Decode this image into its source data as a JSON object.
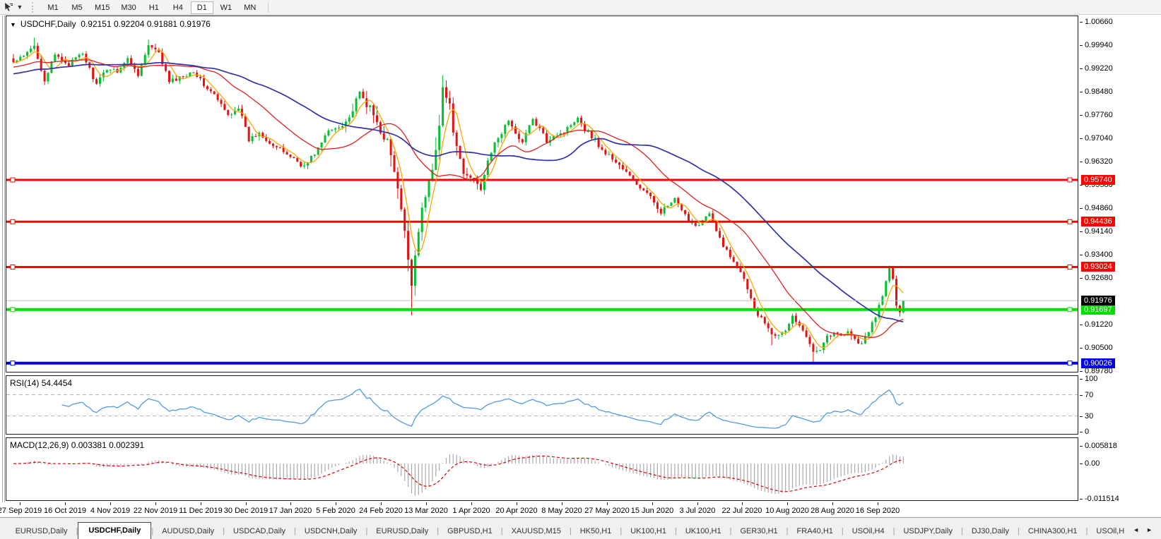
{
  "toolbar": {
    "dropdown_caret": "▼",
    "timeframes": [
      "M1",
      "M5",
      "M15",
      "M30",
      "H1",
      "H4",
      "D1",
      "W1",
      "MN"
    ],
    "active_timeframe": "D1"
  },
  "main_chart": {
    "label": {
      "collapse_icon": "▼",
      "symbol": "USDCHF,Daily",
      "values": "0.92151 0.92204 0.91881 0.91976"
    },
    "y_axis_ticks": [
      "1.00660",
      "0.99940",
      "0.99220",
      "0.98480",
      "0.97760",
      "0.97040",
      "0.96320",
      "0.95580",
      "0.94860",
      "0.94140",
      "0.93400",
      "0.92680",
      "0.91220",
      "0.90500",
      "0.89780"
    ],
    "hlines": [
      {
        "price": 0.9574,
        "label": "0.95740",
        "color": "#FF0000",
        "thickness": 3
      },
      {
        "price": 0.94436,
        "label": "0.94436",
        "color": "#FF0000",
        "thickness": 3
      },
      {
        "price": 0.93024,
        "label": "0.93024",
        "color": "#FF0000",
        "thickness": 3
      },
      {
        "price": 0.91697,
        "label": "0.91697",
        "color": "#00DD00",
        "thickness": 4
      },
      {
        "price": 0.90026,
        "label": "0.90026",
        "color": "#0000E8",
        "thickness": 4
      }
    ],
    "current_price": {
      "value": 0.91976,
      "label": "0.91976",
      "line_color": "#bdbdbd",
      "label_bg": "#000000"
    }
  },
  "rsi": {
    "name": "RSI(14)",
    "value": "54.4454",
    "line_color": "#4F9BE8",
    "level_dash_color": "#b5b5b5",
    "levels": [
      70,
      30
    ],
    "ticks": [
      {
        "v": 100,
        "label": "100"
      },
      {
        "v": 70,
        "label": "70"
      },
      {
        "v": 30,
        "label": "30"
      },
      {
        "v": 0,
        "label": "0"
      }
    ]
  },
  "macd": {
    "name": "MACD(12,26,9)",
    "values": "0.003381 0.002391",
    "hist_color": "#A9A9A9",
    "signal_color": "#E00000",
    "ticks": [
      {
        "v": 0.005818,
        "label": "0.005818"
      },
      {
        "v": 0,
        "label": "0.00"
      },
      {
        "v": -0.011514,
        "label": "-0.011514"
      }
    ]
  },
  "time_axis": {
    "dates": [
      "27 Sep 2019",
      "16 Oct 2019",
      "4 Nov 2019",
      "22 Nov 2019",
      "11 Dec 2019",
      "30 Dec 2019",
      "17 Jan 2020",
      "5 Feb 2020",
      "24 Feb 2020",
      "13 Mar 2020",
      "1 Apr 2020",
      "20 Apr 2020",
      "8 May 2020",
      "27 May 2020",
      "15 Jun 2020",
      "3 Jul 2020",
      "22 Jul 2020",
      "10 Aug 2020",
      "28 Aug 2020",
      "16 Sep 2020"
    ]
  },
  "tabs": {
    "items": [
      "EURUSD,Daily",
      "USDCHF,Daily",
      "AUDUSD,Daily",
      "USDCAD,Daily",
      "USDCNH,Daily",
      "EURUSD,Daily",
      "GBPUSD,H1",
      "XAUUSD,M15",
      "HK50,H1",
      "UK100,H1",
      "UK100,H1",
      "GER30,H1",
      "FRA40,H1",
      "USOil,H4",
      "USDJPY,Daily",
      "DJ30,Daily",
      "CHINA300,H1",
      "USOil,H"
    ],
    "active_index": 1,
    "scroll_left": "◄",
    "scroll_right": "►"
  },
  "colors": {
    "up": "#00C12E",
    "down": "#E81010",
    "ma_fast": "#FFA500",
    "ma_mid": "#E02020",
    "ma_slow": "#3232A8"
  },
  "chart_data": {
    "type": "candlestick",
    "symbol": "USDCHF",
    "timeframe": "Daily",
    "displayed_ohlc": {
      "open": "0.92151",
      "high": "0.92204",
      "low": "0.91881",
      "close": "0.91976"
    },
    "last_close": 0.91976,
    "price_axis_top": 1.0082,
    "price_axis_bottom": 0.8973,
    "levels": [
      0.9574,
      0.94436,
      0.93024,
      0.91697,
      0.90026
    ],
    "moving_averages": [
      {
        "period": 5,
        "color_key": "ma_fast"
      },
      {
        "period": 22,
        "color_key": "ma_mid"
      },
      {
        "period": 48,
        "color_key": "ma_slow"
      }
    ],
    "indicators": [
      {
        "name": "RSI",
        "params": [
          14
        ],
        "last": 54.4454
      },
      {
        "name": "MACD",
        "params": [
          12,
          26,
          9
        ],
        "last_main": 0.003381,
        "last_signal": 0.002391
      }
    ],
    "close_anchors": [
      [
        0,
        0.994
      ],
      [
        3,
        0.9958
      ],
      [
        6,
        0.9992
      ],
      [
        9,
        0.9885
      ],
      [
        12,
        0.9962
      ],
      [
        16,
        0.9935
      ],
      [
        20,
        0.9968
      ],
      [
        24,
        0.987
      ],
      [
        27,
        0.9922
      ],
      [
        30,
        0.9915
      ],
      [
        33,
        0.995
      ],
      [
        36,
        0.9905
      ],
      [
        39,
        0.9992
      ],
      [
        42,
        0.9968
      ],
      [
        45,
        0.988
      ],
      [
        48,
        0.9892
      ],
      [
        52,
        0.9915
      ],
      [
        55,
        0.987
      ],
      [
        58,
        0.9838
      ],
      [
        62,
        0.9775
      ],
      [
        65,
        0.9802
      ],
      [
        68,
        0.9698
      ],
      [
        71,
        0.9722
      ],
      [
        75,
        0.9682
      ],
      [
        78,
        0.9662
      ],
      [
        81,
        0.964
      ],
      [
        84,
        0.9615
      ],
      [
        88,
        0.9672
      ],
      [
        91,
        0.9726
      ],
      [
        94,
        0.9742
      ],
      [
        97,
        0.9768
      ],
      [
        100,
        0.9842
      ],
      [
        103,
        0.9795
      ],
      [
        106,
        0.973
      ],
      [
        108,
        0.9692
      ],
      [
        110,
        0.96
      ],
      [
        112,
        0.9478
      ],
      [
        114,
        0.933
      ],
      [
        115,
        0.9255
      ],
      [
        117,
        0.9425
      ],
      [
        119,
        0.9525
      ],
      [
        121,
        0.9605
      ],
      [
        123,
        0.9755
      ],
      [
        124,
        0.9862
      ],
      [
        126,
        0.98
      ],
      [
        128,
        0.9668
      ],
      [
        130,
        0.959
      ],
      [
        133,
        0.9575
      ],
      [
        135,
        0.9548
      ],
      [
        137,
        0.9642
      ],
      [
        139,
        0.9682
      ],
      [
        141,
        0.9722
      ],
      [
        143,
        0.9762
      ],
      [
        145,
        0.9712
      ],
      [
        147,
        0.9698
      ],
      [
        150,
        0.9762
      ],
      [
        152,
        0.9732
      ],
      [
        154,
        0.9695
      ],
      [
        156,
        0.9716
      ],
      [
        159,
        0.9722
      ],
      [
        161,
        0.9748
      ],
      [
        163,
        0.9772
      ],
      [
        165,
        0.9732
      ],
      [
        168,
        0.97
      ],
      [
        170,
        0.9665
      ],
      [
        172,
        0.965
      ],
      [
        175,
        0.962
      ],
      [
        178,
        0.9585
      ],
      [
        180,
        0.956
      ],
      [
        183,
        0.953
      ],
      [
        185,
        0.9505
      ],
      [
        187,
        0.9475
      ],
      [
        189,
        0.9492
      ],
      [
        191,
        0.9512
      ],
      [
        193,
        0.9475
      ],
      [
        195,
        0.945
      ],
      [
        197,
        0.9432
      ],
      [
        199,
        0.9448
      ],
      [
        201,
        0.9468
      ],
      [
        203,
        0.9412
      ],
      [
        205,
        0.9372
      ],
      [
        207,
        0.9332
      ],
      [
        209,
        0.931
      ],
      [
        211,
        0.9272
      ],
      [
        213,
        0.9202
      ],
      [
        215,
        0.9155
      ],
      [
        217,
        0.9132
      ],
      [
        219,
        0.91
      ],
      [
        221,
        0.9086
      ],
      [
        223,
        0.9106
      ],
      [
        225,
        0.9148
      ],
      [
        227,
        0.9118
      ],
      [
        229,
        0.9082
      ],
      [
        231,
        0.9045
      ],
      [
        233,
        0.905
      ],
      [
        235,
        0.9088
      ],
      [
        237,
        0.9095
      ],
      [
        239,
        0.909
      ],
      [
        241,
        0.9105
      ],
      [
        243,
        0.9075
      ],
      [
        245,
        0.9062
      ],
      [
        247,
        0.91
      ],
      [
        249,
        0.915
      ],
      [
        250,
        0.9182
      ],
      [
        252,
        0.9252
      ],
      [
        253,
        0.93
      ],
      [
        254,
        0.9262
      ],
      [
        255,
        0.9185
      ],
      [
        256,
        0.916
      ],
      [
        257,
        0.9198
      ]
    ],
    "wick_overrides": {
      "6": {
        "high": 1.0018
      },
      "39": {
        "high": 1.0012
      },
      "115": {
        "low": 0.9152
      },
      "124": {
        "high": 0.9901
      },
      "219": {
        "low": 0.9058
      },
      "231": {
        "low": 0.9003
      },
      "253": {
        "high": 0.9307
      },
      "256": {
        "low": 0.9148
      }
    }
  }
}
